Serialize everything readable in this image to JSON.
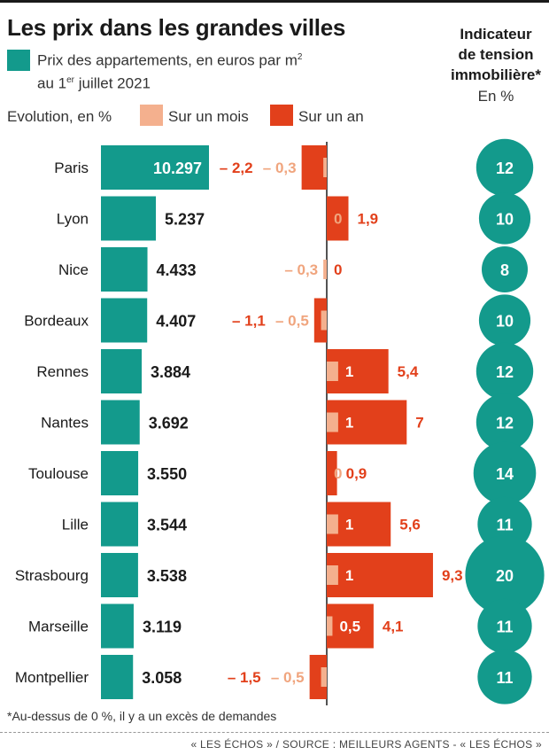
{
  "title": "Les prix dans les grandes villes",
  "legend": {
    "price_line1": "Prix des appartements, en euros par m",
    "price_sup1": "2",
    "price_line2_a": "au 1",
    "price_sup2": "er",
    "price_line2_b": " juillet 2021",
    "evolution_label": "Evolution, en %",
    "month_label": "Sur un mois",
    "year_label": "Sur un an"
  },
  "indicator": {
    "title_line1": "Indicateur",
    "title_line2": "de tension",
    "title_line3": "immobilière*",
    "unit": "En %"
  },
  "footnote": "*Au-dessus de 0 %, il y a un excès de demandes",
  "source": "« LES ÉCHOS » / SOURCE : MEILLEURS AGENTS - « LES ÉCHOS »",
  "colors": {
    "price": "#139a8c",
    "month": "#f4b08e",
    "year": "#e2401b",
    "year_text": "#e2401b",
    "month_text": "#f0a57e",
    "tension": "#139a8c"
  },
  "chart_data": {
    "type": "bar",
    "categories": [
      "Paris",
      "Lyon",
      "Nice",
      "Bordeaux",
      "Rennes",
      "Nantes",
      "Toulouse",
      "Lille",
      "Strasbourg",
      "Marseille",
      "Montpellier"
    ],
    "price_labels": [
      "10.297",
      "5.237",
      "4.433",
      "4.407",
      "3.884",
      "3.692",
      "3.550",
      "3.544",
      "3.538",
      "3.119",
      "3.058"
    ],
    "series": [
      {
        "name": "Prix des appartements, en euros par m2 au 1er juillet 2021",
        "values": [
          10297,
          5237,
          4433,
          4407,
          3884,
          3692,
          3550,
          3544,
          3538,
          3119,
          3058
        ]
      },
      {
        "name": "Sur un mois",
        "values": [
          -0.3,
          0,
          -0.3,
          -0.5,
          1,
          1,
          0,
          1,
          1,
          0.5,
          -0.5
        ],
        "labels": [
          "– 0,3",
          "0",
          "– 0,3",
          "– 0,5",
          "1",
          "1",
          "0",
          "1",
          "1",
          "0,5",
          "– 0,5"
        ]
      },
      {
        "name": "Sur un an",
        "values": [
          -2.2,
          1.9,
          0,
          -1.1,
          5.4,
          7,
          0.9,
          5.6,
          9.3,
          4.1,
          -1.5
        ],
        "labels": [
          "– 2,2",
          "1,9",
          "0",
          "– 1,1",
          "5,4",
          "7",
          "0,9",
          "5,6",
          "9,3",
          "4,1",
          "– 1,5"
        ]
      },
      {
        "name": "Indicateur de tension immobilière",
        "values": [
          12,
          10,
          8,
          10,
          12,
          12,
          14,
          11,
          20,
          11,
          11
        ]
      }
    ]
  }
}
